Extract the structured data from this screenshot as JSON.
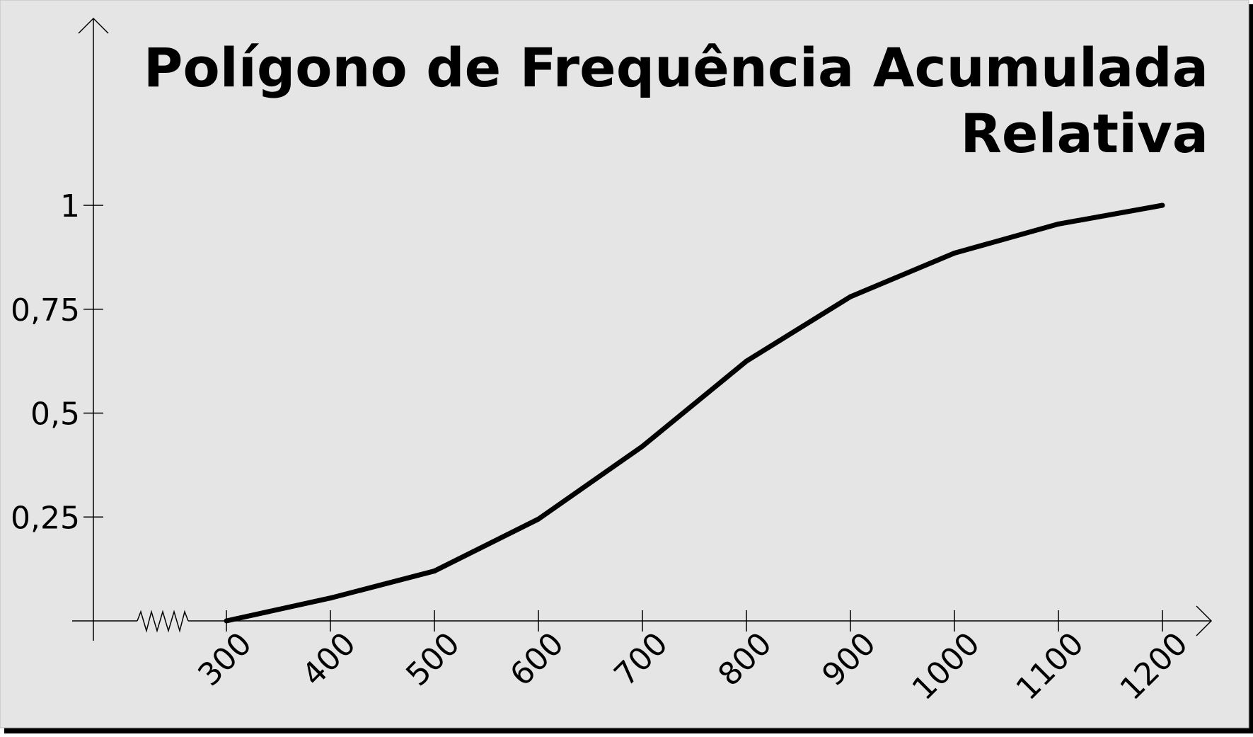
{
  "chart_data": {
    "type": "line",
    "title": "Polígono de Frequência Acumulada",
    "subtitle": "Relativa",
    "xlabel": "",
    "ylabel": "",
    "x": [
      300,
      400,
      500,
      600,
      700,
      800,
      900,
      1000,
      1100,
      1200
    ],
    "xticks": [
      "300",
      "400",
      "500",
      "600",
      "700",
      "800",
      "900",
      "1000",
      "1100",
      "1200"
    ],
    "yticks": [
      {
        "value": 0.25,
        "label": "0,25"
      },
      {
        "value": 0.5,
        "label": "0,5"
      },
      {
        "value": 0.75,
        "label": "0,75"
      },
      {
        "value": 1,
        "label": "1"
      }
    ],
    "ylim": [
      0,
      1
    ],
    "series": [
      {
        "values": [
          0,
          0.055,
          0.12,
          0.245,
          0.42,
          0.625,
          0.78,
          0.885,
          0.955,
          1.0
        ]
      }
    ],
    "x_axis_break": true,
    "grid": false,
    "colors": {
      "background": "#e5e5e5",
      "line": "#000000",
      "axis": "#000000",
      "shadow": "#000000"
    }
  }
}
